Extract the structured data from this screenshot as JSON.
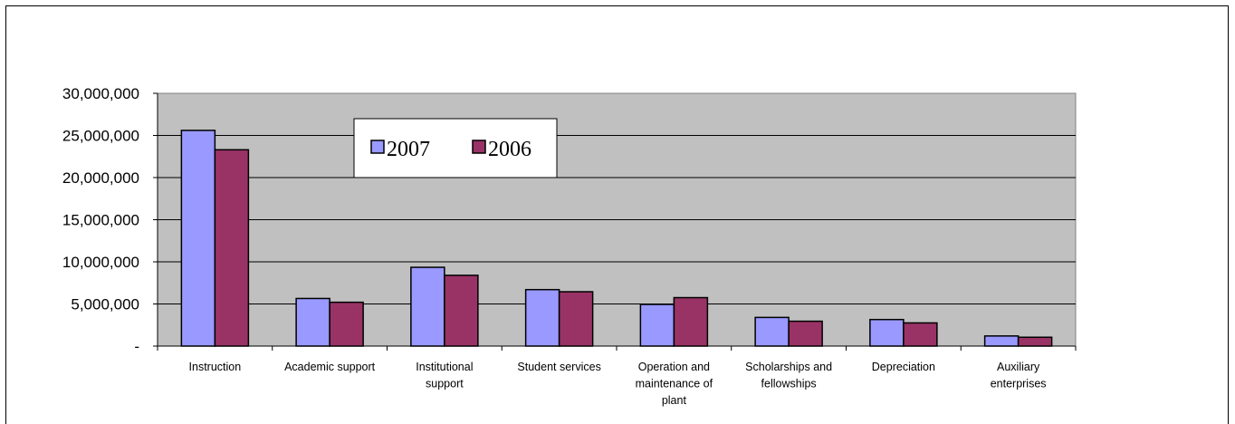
{
  "chart_data": {
    "type": "bar",
    "categories": [
      [
        "Instruction"
      ],
      [
        "Academic support"
      ],
      [
        "Institutional",
        "support"
      ],
      [
        "Student services"
      ],
      [
        "Operation and",
        "maintenance of",
        "plant"
      ],
      [
        "Scholarships and",
        "fellowships"
      ],
      [
        "Depreciation"
      ],
      [
        "Auxiliary",
        "enterprises"
      ]
    ],
    "series": [
      {
        "name": "2007",
        "color": "#9999ff",
        "values": [
          25600000,
          5650000,
          9350000,
          6700000,
          4950000,
          3400000,
          3150000,
          1200000
        ]
      },
      {
        "name": "2006",
        "color": "#993366",
        "values": [
          23300000,
          5200000,
          8400000,
          6450000,
          5750000,
          2950000,
          2750000,
          1050000
        ]
      }
    ],
    "ylim": [
      0,
      30000000
    ],
    "yticks": [
      0,
      5000000,
      10000000,
      15000000,
      20000000,
      25000000,
      30000000
    ],
    "ytick_labels": [
      "-",
      "5,000,000",
      "10,000,000",
      "15,000,000",
      "20,000,000",
      "25,000,000",
      "30,000,000"
    ],
    "grid": true,
    "plot_background": "#c0c0c0",
    "legend_position": "top-left inside plot"
  }
}
